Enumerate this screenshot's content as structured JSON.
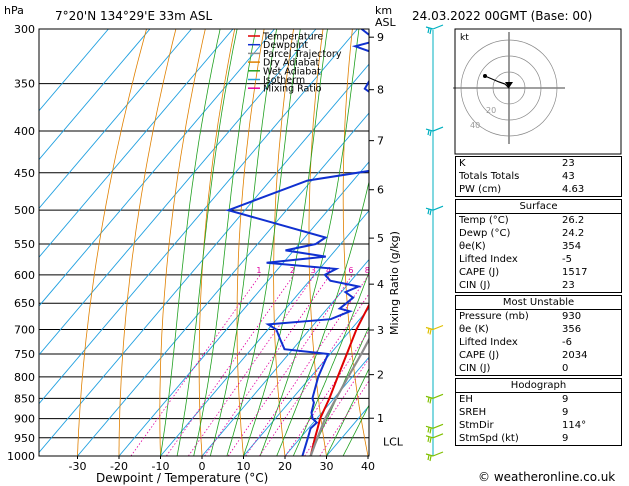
{
  "header": {
    "hpa_label": "hPa",
    "location": "7°20'N  134°29'E  33m  ASL",
    "km_label": "km",
    "asl_label": "ASL",
    "datetime": "24.03.2022  00GMT  (Base: 00)"
  },
  "legend": [
    {
      "name": "Temperature",
      "color": "#e00000"
    },
    {
      "name": "Dewpoint",
      "color": "#1030d0"
    },
    {
      "name": "Parcel Trajectory",
      "color": "#8c8c8c"
    },
    {
      "name": "Dry Adiabat",
      "color": "#e08000"
    },
    {
      "name": "Wet Adiabat",
      "color": "#20a020"
    },
    {
      "name": "Isotherm",
      "color": "#20a0e0"
    },
    {
      "name": "Mixing Ratio",
      "color": "#e000a0"
    }
  ],
  "chart_data": {
    "type": "line",
    "title": "7°20'N  134°29'E  33m  ASL",
    "xlabel": "Dewpoint / Temperature (°C)",
    "ylabel": "hPa",
    "y2label": "Mixing Ratio (g/kg)",
    "xlim": [
      -35,
      40
    ],
    "ylim": [
      1000,
      300
    ],
    "pressure_ticks": [
      300,
      350,
      400,
      450,
      500,
      550,
      600,
      650,
      700,
      750,
      800,
      850,
      900,
      950,
      1000
    ],
    "temperature_ticks": [
      -30,
      -20,
      -10,
      0,
      10,
      20,
      30,
      40
    ],
    "km_ticks": [
      {
        "km": "9",
        "p": 307
      },
      {
        "km": "8",
        "p": 356
      },
      {
        "km": "7",
        "p": 411
      },
      {
        "km": "6",
        "p": 472
      },
      {
        "km": "5",
        "p": 541
      },
      {
        "km": "4",
        "p": 616
      },
      {
        "km": "3",
        "p": 701
      },
      {
        "km": "2",
        "p": 795
      },
      {
        "km": "1",
        "p": 899
      }
    ],
    "lcl": {
      "label": "LCL",
      "p": 960
    },
    "mixing_ratio_labels": [
      "1",
      "2",
      "3",
      "4",
      "6",
      "8",
      "10",
      "15",
      "20",
      "25"
    ],
    "mixing_ratio_values": [
      1,
      2,
      3,
      4,
      6,
      8,
      10,
      15,
      20,
      25
    ],
    "series": [
      {
        "name": "Temperature",
        "color": "#e00000",
        "points": [
          [
            1000,
            26.2
          ],
          [
            950,
            23.5
          ],
          [
            925,
            22.2
          ],
          [
            900,
            20.8
          ],
          [
            850,
            18.9
          ],
          [
            800,
            16.5
          ],
          [
            750,
            14.0
          ],
          [
            700,
            11.3
          ],
          [
            650,
            9.2
          ],
          [
            600,
            5.7
          ],
          [
            550,
            1.5
          ],
          [
            500,
            -3.3
          ],
          [
            450,
            -8.3
          ],
          [
            400,
            -14.0
          ],
          [
            350,
            -21.5
          ]
        ]
      },
      {
        "name": "Dewpoint",
        "color": "#1030d0",
        "points": [
          [
            1000,
            24.2
          ],
          [
            950,
            21.8
          ],
          [
            925,
            20.5
          ],
          [
            910,
            20.8
          ],
          [
            900,
            19.0
          ],
          [
            885,
            17.5
          ],
          [
            860,
            16.0
          ],
          [
            850,
            14.8
          ],
          [
            800,
            11.8
          ],
          [
            750,
            9.5
          ],
          [
            740,
            -2.0
          ],
          [
            720,
            -5.0
          ],
          [
            700,
            -8.0
          ],
          [
            690,
            -11.0
          ],
          [
            680,
            3.0
          ],
          [
            665,
            6.0
          ],
          [
            660,
            3.0
          ],
          [
            650,
            3.5
          ],
          [
            640,
            4.0
          ],
          [
            630,
            1.0
          ],
          [
            620,
            3.0
          ],
          [
            610,
            -5.0
          ],
          [
            600,
            -7.5
          ],
          [
            590,
            -6.0
          ],
          [
            580,
            -24.0
          ],
          [
            570,
            -11.0
          ],
          [
            560,
            -22.0
          ],
          [
            550,
            -16.0
          ],
          [
            540,
            -15.0
          ],
          [
            500,
            -44.0
          ],
          [
            460,
            -31.0
          ],
          [
            440,
            -10.0
          ],
          [
            420,
            -21.0
          ],
          [
            410,
            -16.0
          ],
          [
            400,
            -18.0
          ],
          [
            390,
            -22.0
          ],
          [
            380,
            -25.0
          ],
          [
            370,
            -28.0
          ],
          [
            355,
            -36.0
          ],
          [
            340,
            -37.0
          ],
          [
            330,
            -40.0
          ],
          [
            320,
            -42.0
          ],
          [
            315,
            -47.0
          ],
          [
            310,
            -43.0
          ],
          [
            300,
            -49.0
          ]
        ]
      },
      {
        "name": "Parcel Trajectory",
        "color": "#8c8c8c",
        "points": [
          [
            1000,
            26.2
          ],
          [
            960,
            24.5
          ],
          [
            900,
            22.0
          ],
          [
            850,
            20.5
          ],
          [
            800,
            19.0
          ],
          [
            750,
            17.5
          ],
          [
            700,
            15.6
          ],
          [
            650,
            13.5
          ],
          [
            600,
            11.3
          ],
          [
            550,
            8.6
          ],
          [
            500,
            5.0
          ],
          [
            450,
            1.0
          ],
          [
            400,
            -4.5
          ],
          [
            380,
            -7.0
          ],
          [
            360,
            -11.0
          ],
          [
            350,
            -13.0
          ]
        ]
      }
    ],
    "wind_barbs_pressures": [
      300,
      400,
      500,
      700,
      850,
      925,
      950,
      1000
    ],
    "hodograph": {
      "label": "kt",
      "rings": [
        "20",
        "40"
      ]
    }
  },
  "panel": {
    "indices": [
      {
        "label": "K",
        "value": "23"
      },
      {
        "label": "Totals Totals",
        "value": "43"
      },
      {
        "label": "PW (cm)",
        "value": "4.63"
      }
    ],
    "surface": {
      "title": "Surface",
      "rows": [
        {
          "label": "Temp (°C)",
          "value": "26.2"
        },
        {
          "label": "Dewp (°C)",
          "value": "24.2"
        },
        {
          "label": "θe(K)",
          "value": "354"
        },
        {
          "label": "Lifted Index",
          "value": "-5"
        },
        {
          "label": "CAPE (J)",
          "value": "1517"
        },
        {
          "label": "CIN (J)",
          "value": "23"
        }
      ]
    },
    "most_unstable": {
      "title": "Most Unstable",
      "rows": [
        {
          "label": "Pressure (mb)",
          "value": "930"
        },
        {
          "label": "θe (K)",
          "value": "356"
        },
        {
          "label": "Lifted Index",
          "value": "-6"
        },
        {
          "label": "CAPE (J)",
          "value": "2034"
        },
        {
          "label": "CIN (J)",
          "value": "0"
        }
      ]
    },
    "hodograph_table": {
      "title": "Hodograph",
      "rows": [
        {
          "label": "EH",
          "value": "9"
        },
        {
          "label": "SREH",
          "value": "9"
        },
        {
          "label": "StmDir",
          "value": "114°"
        },
        {
          "label": "StmSpd (kt)",
          "value": "9"
        }
      ]
    }
  },
  "footer": {
    "copyright": "© weatheronline.co.uk"
  }
}
